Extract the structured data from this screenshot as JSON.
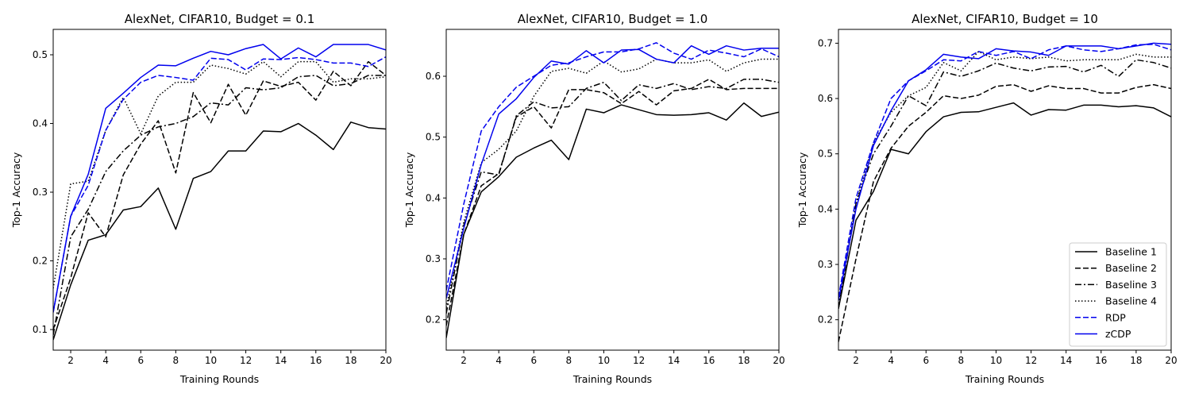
{
  "chart_data": [
    {
      "type": "line",
      "title": "AlexNet, CIFAR10, Budget = 0.1",
      "xlabel": "Training Rounds",
      "ylabel": "Top-1 Accuracy",
      "xlim": [
        1,
        20
      ],
      "ylim": [
        0.07,
        0.537
      ],
      "xticks": [
        2,
        4,
        6,
        8,
        10,
        12,
        14,
        16,
        18,
        20
      ],
      "yticks": [
        0.1,
        0.2,
        0.3,
        0.4,
        0.5
      ],
      "x": [
        1,
        2,
        3,
        4,
        5,
        6,
        7,
        8,
        9,
        10,
        11,
        12,
        13,
        14,
        15,
        16,
        17,
        18,
        19,
        20
      ],
      "series": [
        {
          "name": "Baseline 1",
          "color": "#000000",
          "dash": "solid",
          "values": [
            0.085,
            0.165,
            0.23,
            0.238,
            0.274,
            0.279,
            0.306,
            0.246,
            0.32,
            0.33,
            0.36,
            0.36,
            0.389,
            0.388,
            0.4,
            0.383,
            0.362,
            0.402,
            0.394,
            0.392
          ]
        },
        {
          "name": "Baseline 2",
          "color": "#000000",
          "dash": "dashed",
          "values": [
            0.1,
            0.175,
            0.27,
            0.235,
            0.325,
            0.37,
            0.404,
            0.328,
            0.445,
            0.401,
            0.457,
            0.412,
            0.462,
            0.454,
            0.46,
            0.434,
            0.476,
            0.455,
            0.49,
            0.47
          ]
        },
        {
          "name": "Baseline 3",
          "color": "#000000",
          "dash": "dashdot",
          "values": [
            0.092,
            0.235,
            0.275,
            0.33,
            0.36,
            0.383,
            0.395,
            0.4,
            0.41,
            0.43,
            0.427,
            0.452,
            0.449,
            0.452,
            0.468,
            0.47,
            0.455,
            0.458,
            0.47,
            0.47
          ]
        },
        {
          "name": "Baseline 4",
          "color": "#000000",
          "dash": "dotted",
          "values": [
            0.16,
            0.312,
            0.316,
            0.39,
            0.438,
            0.385,
            0.44,
            0.46,
            0.46,
            0.485,
            0.48,
            0.472,
            0.49,
            0.468,
            0.49,
            0.49,
            0.46,
            0.465,
            0.465,
            0.468
          ]
        },
        {
          "name": "RDP",
          "color": "#0000ee",
          "dash": "dashed",
          "values": [
            0.125,
            0.265,
            0.31,
            0.39,
            0.435,
            0.46,
            0.47,
            0.467,
            0.463,
            0.495,
            0.493,
            0.478,
            0.494,
            0.493,
            0.496,
            0.493,
            0.488,
            0.488,
            0.483,
            0.497
          ]
        },
        {
          "name": "zCDP",
          "color": "#0000ee",
          "dash": "solid",
          "values": [
            0.125,
            0.265,
            0.326,
            0.422,
            0.444,
            0.467,
            0.485,
            0.484,
            0.495,
            0.505,
            0.5,
            0.509,
            0.515,
            0.494,
            0.51,
            0.497,
            0.515,
            0.515,
            0.515,
            0.507
          ]
        }
      ]
    },
    {
      "type": "line",
      "title": "AlexNet, CIFAR10, Budget = 1.0",
      "xlabel": "Training Rounds",
      "ylabel": "Top-1 Accuracy",
      "xlim": [
        1,
        20
      ],
      "ylim": [
        0.15,
        0.677
      ],
      "xticks": [
        2,
        4,
        6,
        8,
        10,
        12,
        14,
        16,
        18,
        20
      ],
      "yticks": [
        0.2,
        0.3,
        0.4,
        0.5,
        0.6
      ],
      "x": [
        1,
        2,
        3,
        4,
        5,
        6,
        7,
        8,
        9,
        10,
        11,
        12,
        13,
        14,
        15,
        16,
        17,
        18,
        19,
        20
      ],
      "series": [
        {
          "name": "Baseline 1",
          "color": "#000000",
          "dash": "solid",
          "values": [
            0.17,
            0.34,
            0.41,
            0.435,
            0.467,
            0.482,
            0.495,
            0.463,
            0.546,
            0.54,
            0.553,
            0.545,
            0.537,
            0.536,
            0.537,
            0.54,
            0.528,
            0.556,
            0.534,
            0.541
          ]
        },
        {
          "name": "Baseline 2",
          "color": "#000000",
          "dash": "dashed",
          "values": [
            0.19,
            0.34,
            0.42,
            0.44,
            0.533,
            0.55,
            0.515,
            0.578,
            0.578,
            0.573,
            0.555,
            0.575,
            0.553,
            0.576,
            0.58,
            0.595,
            0.578,
            0.58,
            0.58,
            0.58
          ]
        },
        {
          "name": "Baseline 3",
          "color": "#000000",
          "dash": "dashdot",
          "values": [
            0.21,
            0.355,
            0.443,
            0.438,
            0.535,
            0.558,
            0.548,
            0.55,
            0.58,
            0.59,
            0.56,
            0.586,
            0.58,
            0.588,
            0.578,
            0.583,
            0.58,
            0.595,
            0.595,
            0.59
          ]
        },
        {
          "name": "Baseline 4",
          "color": "#000000",
          "dash": "dotted",
          "values": [
            0.22,
            0.36,
            0.458,
            0.48,
            0.51,
            0.567,
            0.608,
            0.613,
            0.605,
            0.625,
            0.607,
            0.612,
            0.628,
            0.622,
            0.622,
            0.627,
            0.608,
            0.622,
            0.628,
            0.628
          ]
        },
        {
          "name": "RDP",
          "color": "#0000ee",
          "dash": "dashed",
          "values": [
            0.248,
            0.39,
            0.51,
            0.55,
            0.582,
            0.6,
            0.618,
            0.622,
            0.632,
            0.64,
            0.64,
            0.645,
            0.655,
            0.638,
            0.628,
            0.643,
            0.638,
            0.632,
            0.645,
            0.632
          ]
        },
        {
          "name": "zCDP",
          "color": "#0000ee",
          "dash": "solid",
          "values": [
            0.235,
            0.35,
            0.455,
            0.538,
            0.563,
            0.598,
            0.625,
            0.62,
            0.642,
            0.622,
            0.643,
            0.644,
            0.628,
            0.622,
            0.65,
            0.636,
            0.65,
            0.643,
            0.646,
            0.646
          ]
        }
      ]
    },
    {
      "type": "line",
      "title": "AlexNet, CIFAR10, Budget = 10",
      "xlabel": "Training Rounds",
      "ylabel": "Top-1 Accuracy",
      "xlim": [
        1,
        20
      ],
      "ylim": [
        0.145,
        0.725
      ],
      "xticks": [
        2,
        4,
        6,
        8,
        10,
        12,
        14,
        16,
        18,
        20
      ],
      "yticks": [
        0.2,
        0.3,
        0.4,
        0.5,
        0.6,
        0.7
      ],
      "x": [
        1,
        2,
        3,
        4,
        5,
        6,
        7,
        8,
        9,
        10,
        11,
        12,
        13,
        14,
        15,
        16,
        17,
        18,
        19,
        20
      ],
      "series": [
        {
          "name": "Baseline 1",
          "color": "#000000",
          "dash": "solid",
          "values": [
            0.22,
            0.38,
            0.432,
            0.508,
            0.5,
            0.54,
            0.567,
            0.575,
            0.576,
            0.584,
            0.592,
            0.57,
            0.58,
            0.579,
            0.588,
            0.588,
            0.585,
            0.587,
            0.583,
            0.567
          ]
        },
        {
          "name": "Baseline 2",
          "color": "#000000",
          "dash": "dashed",
          "values": [
            0.16,
            0.31,
            0.45,
            0.51,
            0.55,
            0.575,
            0.605,
            0.6,
            0.606,
            0.622,
            0.625,
            0.613,
            0.623,
            0.618,
            0.618,
            0.61,
            0.61,
            0.62,
            0.625,
            0.618
          ]
        },
        {
          "name": "Baseline 3",
          "color": "#000000",
          "dash": "dashdot",
          "values": [
            0.22,
            0.41,
            0.5,
            0.55,
            0.605,
            0.587,
            0.648,
            0.64,
            0.65,
            0.664,
            0.655,
            0.65,
            0.657,
            0.658,
            0.648,
            0.66,
            0.64,
            0.67,
            0.665,
            0.655
          ]
        },
        {
          "name": "Baseline 4",
          "color": "#000000",
          "dash": "dotted",
          "values": [
            0.23,
            0.41,
            0.52,
            0.575,
            0.605,
            0.62,
            0.665,
            0.65,
            0.685,
            0.67,
            0.675,
            0.672,
            0.675,
            0.668,
            0.67,
            0.67,
            0.67,
            0.68,
            0.675,
            0.675
          ]
        },
        {
          "name": "RDP",
          "color": "#0000ee",
          "dash": "dashed",
          "values": [
            0.24,
            0.42,
            0.52,
            0.6,
            0.632,
            0.65,
            0.67,
            0.668,
            0.685,
            0.678,
            0.685,
            0.672,
            0.688,
            0.695,
            0.688,
            0.685,
            0.69,
            0.697,
            0.698,
            0.688
          ]
        },
        {
          "name": "zCDP",
          "color": "#0000ee",
          "dash": "solid",
          "values": [
            0.235,
            0.4,
            0.515,
            0.578,
            0.632,
            0.652,
            0.68,
            0.675,
            0.672,
            0.69,
            0.686,
            0.684,
            0.678,
            0.695,
            0.695,
            0.695,
            0.69,
            0.695,
            0.7,
            0.698
          ]
        }
      ],
      "legend": {
        "placement": "lower right"
      }
    }
  ]
}
